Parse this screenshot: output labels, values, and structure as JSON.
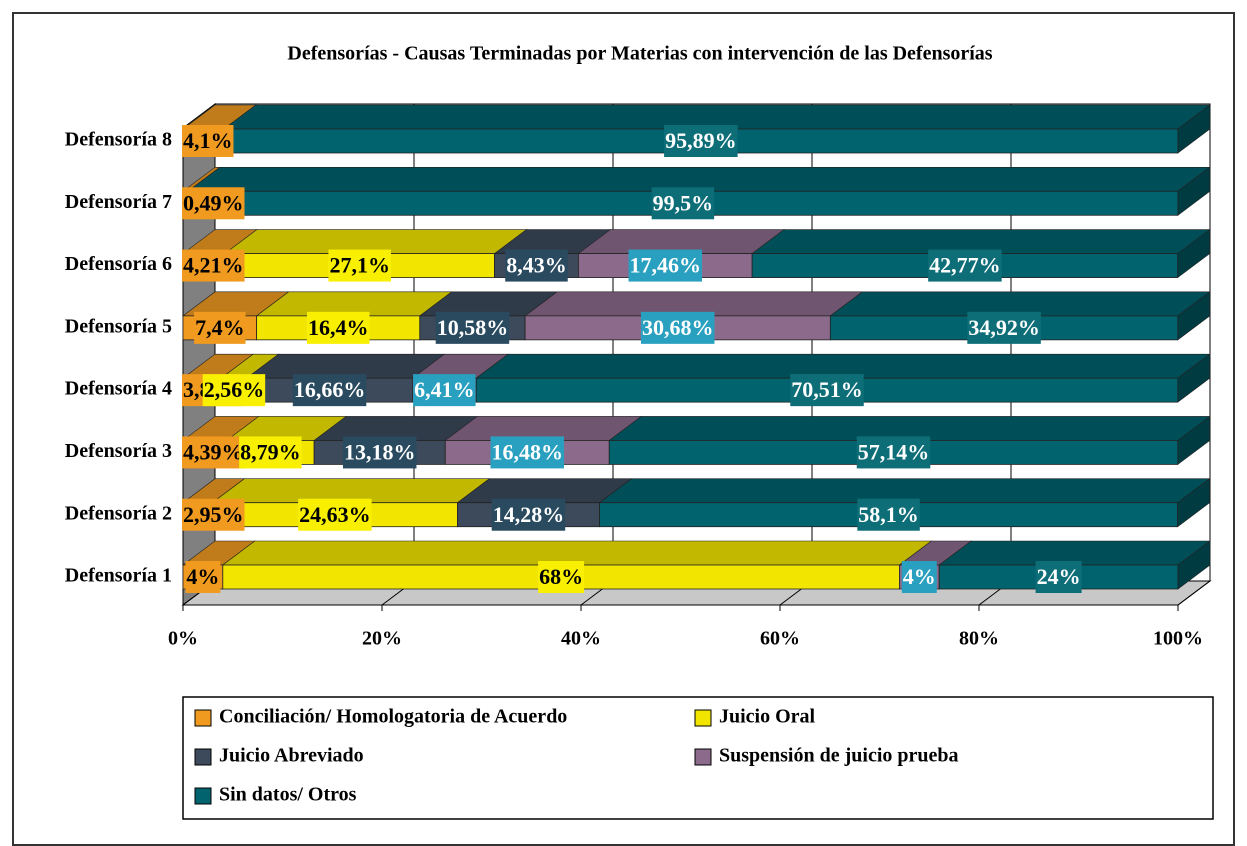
{
  "chart_data": {
    "type": "stacked_barh_3d",
    "title": "Defensorías - Causas Terminadas por Materias con intervención de las Defensorías",
    "categories": [
      "Defensoría 1",
      "Defensoría 2",
      "Defensoría 3",
      "Defensoría 4",
      "Defensoría 5",
      "Defensoría 6",
      "Defensoría 7",
      "Defensoría 8"
    ],
    "series": [
      {
        "name": "Conciliación/ Homologatoria de Acuerdo",
        "color": "#f09a20",
        "values": [
          4,
          2.95,
          4.39,
          3.84,
          7.4,
          4.21,
          0.49,
          4.1
        ],
        "value_labels": [
          "4%",
          "2,95%",
          "4,39%",
          "3,84%",
          "7,4%",
          "4,21%",
          "0,49%",
          "4,1%"
        ]
      },
      {
        "name": "Juicio Oral",
        "color": "#f2e600",
        "values": [
          68,
          24.63,
          8.79,
          2.56,
          16.4,
          27.1,
          null,
          null
        ],
        "value_labels": [
          "68%",
          "24,63%",
          "8,79%",
          "2,56%",
          "16,4%",
          "27,1%",
          null,
          null
        ]
      },
      {
        "name": "Juicio Abreviado",
        "color": "#3c4a5c",
        "values": [
          null,
          14.28,
          13.18,
          16.66,
          10.58,
          8.43,
          null,
          null
        ],
        "value_labels": [
          null,
          "14,28%",
          "13,18%",
          "16,66%",
          "10,58%",
          "8,43%",
          null,
          null
        ]
      },
      {
        "name": "Suspensión de juicio  prueba",
        "color": "#8c6a8c",
        "values": [
          4,
          null,
          16.48,
          6.41,
          30.68,
          17.46,
          null,
          null
        ],
        "value_labels": [
          "4%",
          null,
          "16,48%",
          "6,41%",
          "30,68%",
          "17,46%",
          null,
          null
        ]
      },
      {
        "name": "Sin datos/ Otros",
        "color": "#00636e",
        "values": [
          24,
          58.1,
          57.14,
          70.51,
          34.92,
          42.77,
          99.5,
          95.89
        ],
        "value_labels": [
          "24%",
          "58,1%",
          "57,14%",
          "70,51%",
          "34,92%",
          "42,77%",
          "99,5%",
          "95,89%"
        ]
      }
    ],
    "xlim": [
      0,
      100
    ],
    "xticks": [
      {
        "value": 0,
        "label": "0%"
      },
      {
        "value": 20,
        "label": "20%"
      },
      {
        "value": 40,
        "label": "40%"
      },
      {
        "value": 60,
        "label": "60%"
      },
      {
        "value": 80,
        "label": "80%"
      },
      {
        "value": 100,
        "label": "100%"
      }
    ],
    "grid": true
  }
}
